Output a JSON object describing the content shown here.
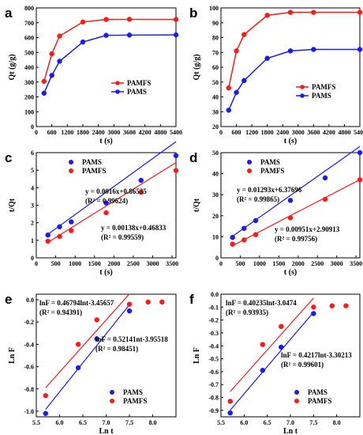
{
  "colors": {
    "red": "#ff1a1a",
    "blue": "#1a1aff"
  },
  "chart_data": [
    {
      "id": "a",
      "panel_label": "a",
      "type": "line",
      "xlabel": "t (s)",
      "ylabel": "Qt (g/g)",
      "xlim": [
        0,
        5400
      ],
      "ylim": [
        0,
        800
      ],
      "xticks": [
        0,
        600,
        1200,
        1800,
        2400,
        3000,
        3600,
        4200,
        4800,
        5400
      ],
      "yticks": [
        0,
        100,
        200,
        300,
        400,
        500,
        600,
        700,
        800
      ],
      "legend": "right",
      "series": [
        {
          "name": "PAMFS",
          "color": "red",
          "x": [
            300,
            600,
            900,
            1800,
            2700,
            3600,
            5400
          ],
          "y": [
            305,
            490,
            610,
            705,
            722,
            723,
            722
          ]
        },
        {
          "name": "PAMS",
          "color": "blue",
          "x": [
            300,
            600,
            900,
            1800,
            2700,
            3600,
            5400
          ],
          "y": [
            225,
            345,
            440,
            570,
            615,
            617,
            618
          ]
        }
      ]
    },
    {
      "id": "b",
      "panel_label": "b",
      "type": "line",
      "xlabel": "t (s)",
      "ylabel": "Qt (g/g)",
      "xlim": [
        0,
        5400
      ],
      "ylim": [
        20,
        100
      ],
      "xticks": [
        0,
        600,
        1200,
        1800,
        2400,
        3000,
        3600,
        4200,
        4800,
        5400
      ],
      "yticks": [
        20,
        30,
        40,
        50,
        60,
        70,
        80,
        90,
        100
      ],
      "legend": "right",
      "series": [
        {
          "name": "PAMFS",
          "color": "red",
          "x": [
            300,
            600,
            900,
            1800,
            2700,
            3600,
            5400
          ],
          "y": [
            46,
            71,
            82,
            95,
            97,
            97,
            97
          ]
        },
        {
          "name": "PAMS",
          "color": "blue",
          "x": [
            300,
            600,
            900,
            1800,
            2700,
            3600,
            5400
          ],
          "y": [
            31,
            43,
            51,
            66,
            71,
            72,
            72
          ]
        }
      ]
    },
    {
      "id": "c",
      "panel_label": "c",
      "type": "scatter",
      "xlabel": "t (s)",
      "ylabel": "t/Qt",
      "xlim": [
        0,
        3600
      ],
      "ylim": [
        0,
        6
      ],
      "xticks": [
        0,
        500,
        1000,
        1500,
        2000,
        2500,
        3000,
        3500
      ],
      "yticks": [
        0,
        1,
        2,
        3,
        4,
        5,
        6
      ],
      "legend": "top-left",
      "series": [
        {
          "name": "PAMS",
          "color": "blue",
          "x": [
            300,
            600,
            900,
            1800,
            2700,
            3600
          ],
          "y": [
            1.3,
            1.77,
            2.05,
            3.13,
            4.42,
            5.83
          ],
          "fit": {
            "slope": 0.0016,
            "intercept": 0.86535
          }
        },
        {
          "name": "PAMFS",
          "color": "red",
          "x": [
            300,
            600,
            900,
            1800,
            2700,
            3600
          ],
          "y": [
            0.95,
            1.22,
            1.55,
            2.57,
            3.74,
            4.98
          ],
          "fit": {
            "slope": 0.00138,
            "intercept": 0.46833
          }
        }
      ],
      "annotations": [
        {
          "line1": "y = 0.0016x+0.86535",
          "line2": "(R² = 0.99624)"
        },
        {
          "line1": "y = 0.00138x+0.46833",
          "line2": "(R² = 0.99559)"
        }
      ]
    },
    {
      "id": "d",
      "panel_label": "d",
      "type": "scatter",
      "xlabel": "t (s)",
      "ylabel": "t/Qt",
      "xlim": [
        0,
        3600
      ],
      "ylim": [
        0,
        50
      ],
      "xticks": [
        0,
        500,
        1000,
        1500,
        2000,
        2500,
        3000,
        3500
      ],
      "yticks": [
        0,
        10,
        20,
        30,
        40,
        50
      ],
      "legend": "top-left",
      "series": [
        {
          "name": "PAMS",
          "color": "blue",
          "x": [
            300,
            600,
            900,
            1800,
            2700,
            3600
          ],
          "y": [
            9.7,
            14.0,
            17.7,
            27.3,
            38.0,
            50.0
          ],
          "fit": {
            "slope": 0.01293,
            "intercept": 6.37696
          }
        },
        {
          "name": "PAMFS",
          "color": "red",
          "x": [
            300,
            600,
            900,
            1800,
            2700,
            3600
          ],
          "y": [
            6.5,
            8.5,
            11.0,
            19.0,
            27.8,
            37.1
          ],
          "fit": {
            "slope": 0.00951,
            "intercept": 2.90913
          }
        }
      ],
      "annotations": [
        {
          "line1": "y = 0.01293x+6.37696",
          "line2": "(R² = 0.99865)"
        },
        {
          "line1": "y = 0.00951x+2.90913",
          "line2": "(R² = 0.99756)"
        }
      ]
    },
    {
      "id": "e",
      "panel_label": "e",
      "type": "scatter",
      "xlabel": "Ln t",
      "ylabel": "Ln F",
      "xlim": [
        5.5,
        8.5
      ],
      "ylim": [
        -1.05,
        0.05
      ],
      "xticks": [
        5.5,
        6.0,
        6.5,
        7.0,
        7.5,
        8.0
      ],
      "yticks": [
        -1.0,
        -0.8,
        -0.6,
        -0.4,
        -0.2,
        0.0
      ],
      "legend": "bottom-right",
      "series": [
        {
          "name": "PAMS",
          "color": "blue",
          "x": [
            5.7,
            6.4,
            6.8,
            7.5
          ],
          "y": [
            -1.02,
            -0.61,
            -0.35,
            -0.1
          ],
          "fit": {
            "slope": 0.52141,
            "intercept": -3.95518,
            "x_range": [
              5.7,
              7.5
            ]
          }
        },
        {
          "name": "PAMFS",
          "color": "red",
          "x": [
            5.7,
            6.4,
            6.8,
            7.5,
            7.9,
            8.2
          ],
          "y": [
            -0.86,
            -0.4,
            -0.18,
            -0.04,
            -0.02,
            -0.02
          ],
          "fit": {
            "slope": 0.46794,
            "intercept": -3.45657,
            "x_range": [
              5.7,
              7.5
            ]
          }
        }
      ],
      "annotations": [
        {
          "line1": "lnF = 0.46794lnt-3.45657",
          "line2": "(R² = 0.94391)"
        },
        {
          "line1": "lnF = 0.52141nt-3.95518",
          "line2": "(R² = 0.98451)"
        }
      ]
    },
    {
      "id": "f",
      "panel_label": "f",
      "type": "scatter",
      "xlabel": "Ln t",
      "ylabel": "Ln F",
      "xlim": [
        5.5,
        8.5
      ],
      "ylim": [
        -0.95,
        0.0
      ],
      "xticks": [
        5.5,
        6.0,
        6.5,
        7.0,
        7.5,
        8.0
      ],
      "yticks": [
        -0.9,
        -0.8,
        -0.7,
        -0.6,
        -0.5,
        -0.4,
        -0.3,
        -0.2,
        -0.1,
        0.0
      ],
      "legend": "bottom-right",
      "series": [
        {
          "name": "PAMS",
          "color": "blue",
          "x": [
            5.7,
            6.4,
            6.8,
            7.5
          ],
          "y": [
            -0.92,
            -0.59,
            -0.41,
            -0.15
          ],
          "fit": {
            "slope": 0.4217,
            "intercept": -3.30213,
            "x_range": [
              5.7,
              7.5
            ]
          }
        },
        {
          "name": "PAMFS",
          "color": "red",
          "x": [
            5.7,
            6.4,
            6.8,
            7.5,
            7.9,
            8.2
          ],
          "y": [
            -0.83,
            -0.39,
            -0.25,
            -0.1,
            -0.09,
            -0.09
          ],
          "fit": {
            "slope": 0.40235,
            "intercept": -3.0474,
            "x_range": [
              5.7,
              7.5
            ]
          }
        }
      ],
      "annotations": [
        {
          "line1": "lnF = 0.40235lnt-3.0474",
          "line2": "(R² = 0.93935)"
        },
        {
          "line1": "lnF = 0.4217lnt-3.30213",
          "line2": "(R² = 0.99601)"
        }
      ]
    }
  ]
}
